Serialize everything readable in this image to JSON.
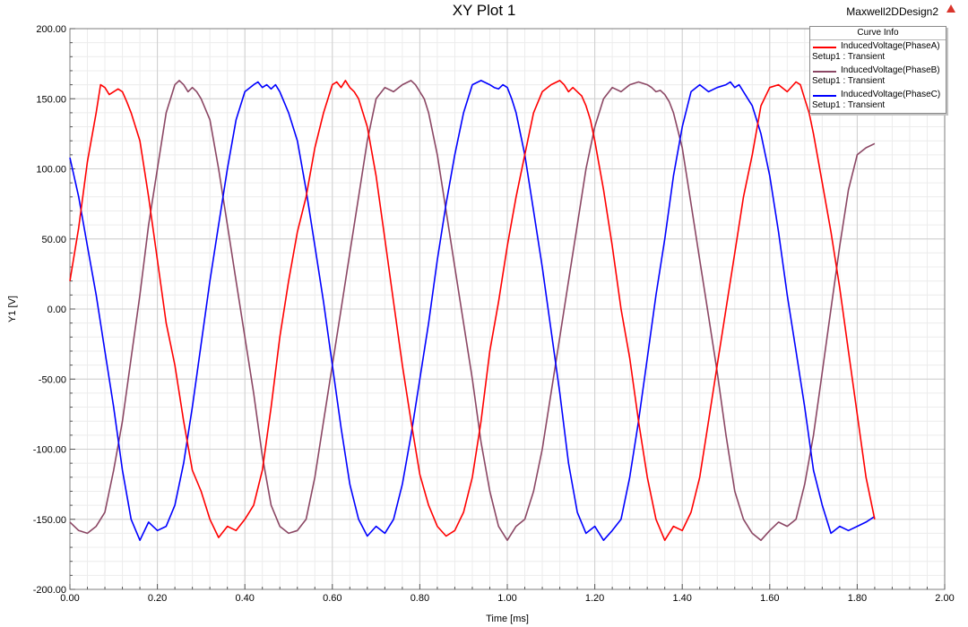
{
  "header": {
    "title": "XY Plot 1",
    "design_name": "Maxwell2DDesign2",
    "logo_icon": "ansys-logo-icon"
  },
  "legend": {
    "title": "Curve Info",
    "entries": [
      {
        "name": "InducedVoltage(PhaseA)",
        "setup": "Setup1 : Transient",
        "color": "#ff0000"
      },
      {
        "name": "InducedVoltage(PhaseB)",
        "setup": "Setup1 : Transient",
        "color": "#8b4764"
      },
      {
        "name": "InducedVoltage(PhaseC)",
        "setup": "Setup1 : Transient",
        "color": "#0000ff"
      }
    ]
  },
  "chart_data": {
    "type": "line",
    "title": "XY Plot 1",
    "xlabel": "Time [ms]",
    "ylabel": "Y1 [V]",
    "xlim": [
      0,
      2
    ],
    "ylim": [
      -200,
      200
    ],
    "x_ticks": [
      "0.00",
      "0.20",
      "0.40",
      "0.60",
      "0.80",
      "1.00",
      "1.20",
      "1.40",
      "1.60",
      "1.80",
      "2.00"
    ],
    "y_ticks": [
      "200.00",
      "150.00",
      "100.00",
      "50.00",
      "0.00",
      "-50.00",
      "-100.00",
      "-150.00",
      "-200.00"
    ],
    "grid": true,
    "legend_position": "top-right",
    "series": [
      {
        "name": "InducedVoltage(PhaseA)",
        "color": "#ff0000",
        "x": [
          0,
          0.02,
          0.04,
          0.06,
          0.07,
          0.08,
          0.09,
          0.1,
          0.11,
          0.12,
          0.13,
          0.14,
          0.16,
          0.18,
          0.2,
          0.22,
          0.24,
          0.26,
          0.28,
          0.3,
          0.32,
          0.34,
          0.36,
          0.38,
          0.4,
          0.42,
          0.44,
          0.46,
          0.48,
          0.5,
          0.52,
          0.54,
          0.56,
          0.58,
          0.6,
          0.61,
          0.62,
          0.63,
          0.64,
          0.65,
          0.66,
          0.68,
          0.7,
          0.72,
          0.74,
          0.76,
          0.78,
          0.8,
          0.82,
          0.84,
          0.86,
          0.88,
          0.9,
          0.92,
          0.94,
          0.96,
          0.98,
          1.0,
          1.02,
          1.04,
          1.06,
          1.08,
          1.1,
          1.12,
          1.13,
          1.14,
          1.15,
          1.16,
          1.17,
          1.18,
          1.19,
          1.2,
          1.22,
          1.24,
          1.26,
          1.28,
          1.3,
          1.32,
          1.34,
          1.36,
          1.38,
          1.4,
          1.42,
          1.44,
          1.46,
          1.48,
          1.5,
          1.52,
          1.54,
          1.56,
          1.58,
          1.6,
          1.62,
          1.64,
          1.66,
          1.67,
          1.68,
          1.69,
          1.7,
          1.72,
          1.74,
          1.76,
          1.78,
          1.8,
          1.82,
          1.84
        ],
        "y": [
          20,
          58,
          105,
          140,
          160,
          158,
          153,
          155,
          157,
          155,
          148,
          140,
          120,
          80,
          35,
          -10,
          -40,
          -80,
          -115,
          -130,
          -150,
          -163,
          -155,
          -158,
          -150,
          -140,
          -115,
          -70,
          -20,
          20,
          55,
          80,
          115,
          140,
          160,
          162,
          158,
          163,
          158,
          155,
          150,
          130,
          95,
          50,
          5,
          -40,
          -80,
          -118,
          -140,
          -155,
          -162,
          -158,
          -145,
          -120,
          -80,
          -30,
          5,
          45,
          80,
          110,
          140,
          155,
          160,
          163,
          160,
          155,
          158,
          155,
          152,
          145,
          135,
          120,
          85,
          45,
          0,
          -35,
          -80,
          -120,
          -150,
          -165,
          -155,
          -158,
          -145,
          -120,
          -80,
          -40,
          0,
          40,
          80,
          110,
          145,
          158,
          160,
          155,
          162,
          160,
          150,
          140,
          125,
          90,
          55,
          15,
          -30,
          -75,
          -120,
          -150
        ]
      },
      {
        "name": "InducedVoltage(PhaseB)",
        "color": "#8b4764",
        "x": [
          0,
          0.02,
          0.04,
          0.06,
          0.08,
          0.1,
          0.12,
          0.14,
          0.16,
          0.18,
          0.2,
          0.22,
          0.24,
          0.25,
          0.26,
          0.27,
          0.28,
          0.29,
          0.3,
          0.32,
          0.34,
          0.36,
          0.38,
          0.4,
          0.42,
          0.44,
          0.46,
          0.48,
          0.5,
          0.52,
          0.54,
          0.56,
          0.58,
          0.6,
          0.62,
          0.64,
          0.66,
          0.68,
          0.7,
          0.72,
          0.74,
          0.76,
          0.78,
          0.79,
          0.8,
          0.81,
          0.82,
          0.84,
          0.86,
          0.88,
          0.9,
          0.92,
          0.94,
          0.96,
          0.98,
          1.0,
          1.02,
          1.04,
          1.06,
          1.08,
          1.1,
          1.12,
          1.14,
          1.16,
          1.18,
          1.2,
          1.22,
          1.24,
          1.26,
          1.28,
          1.3,
          1.32,
          1.33,
          1.34,
          1.35,
          1.36,
          1.37,
          1.38,
          1.4,
          1.42,
          1.44,
          1.46,
          1.48,
          1.5,
          1.52,
          1.54,
          1.56,
          1.58,
          1.6,
          1.62,
          1.64,
          1.66,
          1.68,
          1.7,
          1.72,
          1.74,
          1.76,
          1.78,
          1.8,
          1.82,
          1.84
        ],
        "y": [
          -152,
          -158,
          -160,
          -155,
          -145,
          -115,
          -80,
          -35,
          10,
          60,
          100,
          140,
          160,
          163,
          160,
          155,
          158,
          155,
          150,
          135,
          100,
          60,
          20,
          -20,
          -60,
          -105,
          -140,
          -155,
          -160,
          -158,
          -150,
          -120,
          -80,
          -40,
          0,
          40,
          80,
          120,
          150,
          158,
          155,
          160,
          163,
          160,
          155,
          150,
          140,
          110,
          70,
          30,
          -10,
          -50,
          -95,
          -130,
          -155,
          -165,
          -155,
          -150,
          -130,
          -100,
          -60,
          -20,
          20,
          60,
          100,
          130,
          150,
          158,
          155,
          160,
          162,
          160,
          158,
          155,
          156,
          153,
          148,
          140,
          115,
          75,
          35,
          -5,
          -45,
          -90,
          -130,
          -150,
          -160,
          -165,
          -158,
          -152,
          -155,
          -150,
          -125,
          -90,
          -45,
          0,
          45,
          85,
          110,
          115,
          118
        ]
      },
      {
        "name": "InducedVoltage(PhaseC)",
        "color": "#0000ff",
        "x": [
          0,
          0.02,
          0.04,
          0.06,
          0.08,
          0.1,
          0.12,
          0.14,
          0.16,
          0.18,
          0.2,
          0.22,
          0.24,
          0.26,
          0.28,
          0.3,
          0.32,
          0.34,
          0.36,
          0.38,
          0.4,
          0.42,
          0.43,
          0.44,
          0.45,
          0.46,
          0.47,
          0.48,
          0.5,
          0.52,
          0.54,
          0.56,
          0.58,
          0.6,
          0.62,
          0.64,
          0.66,
          0.68,
          0.7,
          0.72,
          0.74,
          0.76,
          0.78,
          0.8,
          0.82,
          0.84,
          0.86,
          0.88,
          0.9,
          0.92,
          0.94,
          0.96,
          0.97,
          0.98,
          0.99,
          1.0,
          1.01,
          1.02,
          1.04,
          1.06,
          1.08,
          1.1,
          1.12,
          1.14,
          1.16,
          1.18,
          1.2,
          1.22,
          1.24,
          1.26,
          1.28,
          1.3,
          1.32,
          1.34,
          1.36,
          1.38,
          1.4,
          1.42,
          1.44,
          1.46,
          1.48,
          1.5,
          1.51,
          1.52,
          1.53,
          1.54,
          1.55,
          1.56,
          1.58,
          1.6,
          1.62,
          1.64,
          1.66,
          1.68,
          1.7,
          1.72,
          1.74,
          1.76,
          1.78,
          1.8,
          1.82,
          1.84
        ],
        "y": [
          108,
          80,
          45,
          10,
          -30,
          -70,
          -115,
          -150,
          -165,
          -152,
          -158,
          -155,
          -140,
          -110,
          -70,
          -25,
          20,
          60,
          100,
          135,
          155,
          160,
          162,
          158,
          160,
          157,
          160,
          155,
          140,
          120,
          85,
          45,
          5,
          -40,
          -85,
          -125,
          -150,
          -162,
          -155,
          -160,
          -150,
          -125,
          -90,
          -50,
          -10,
          35,
          75,
          110,
          140,
          160,
          163,
          160,
          158,
          157,
          160,
          158,
          150,
          140,
          110,
          70,
          30,
          -15,
          -60,
          -110,
          -145,
          -160,
          -155,
          -165,
          -158,
          -150,
          -120,
          -80,
          -35,
          10,
          50,
          95,
          130,
          155,
          160,
          155,
          158,
          160,
          162,
          158,
          160,
          155,
          150,
          145,
          125,
          95,
          55,
          10,
          -30,
          -70,
          -115,
          -140,
          -160,
          -155,
          -158,
          -155,
          -152,
          -148
        ]
      }
    ]
  }
}
